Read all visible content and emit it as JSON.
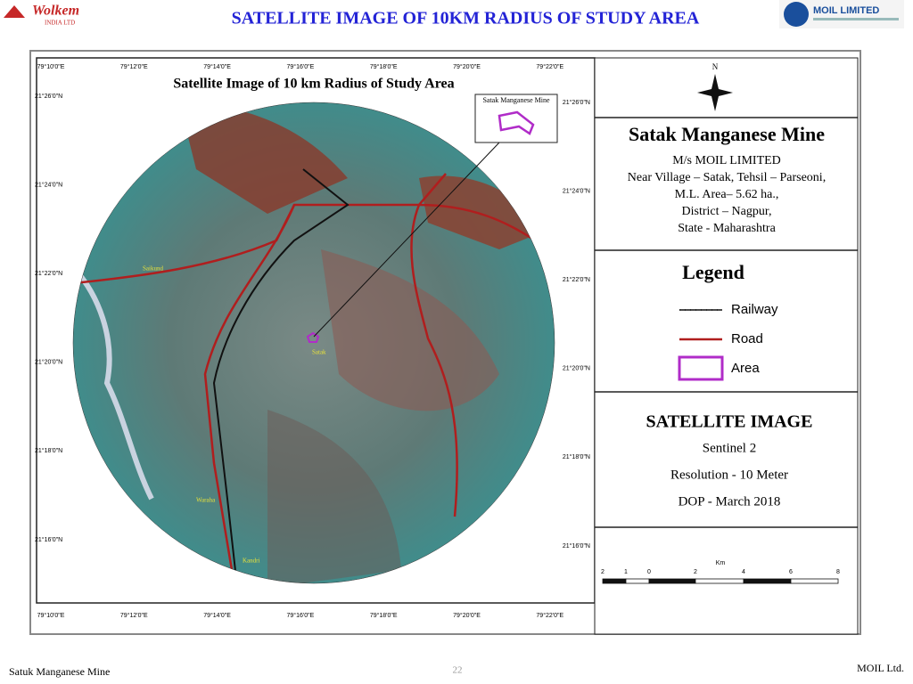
{
  "header": {
    "title": "SATELLITE IMAGE OF 10KM RADIUS OF STUDY AREA",
    "left_logo": {
      "name": "Wolkem",
      "sub": "INDIA LTD"
    },
    "right_logo": {
      "name": "MOIL LIMITED"
    }
  },
  "map": {
    "title": "Satellite Image of 10 km Radius of Study Area",
    "inset_label": "Satak Manganese Mine",
    "longitudes": [
      "79°10'0\"E",
      "79°12'0\"E",
      "79°14'0\"E",
      "79°16'0\"E",
      "79°18'0\"E",
      "79°20'0\"E",
      "79°22'0\"E"
    ],
    "latitudes": [
      "21°26'0\"N",
      "21°24'0\"N",
      "21°22'0\"N",
      "21°20'0\"N",
      "21°18'0\"N",
      "21°16'0\"N"
    ],
    "places": [
      "Saikund",
      "Satak",
      "Waraha",
      "Kandri"
    ]
  },
  "panel": {
    "north": "N",
    "mine_title": "Satak Manganese Mine",
    "mine_lines": [
      "M/s MOIL LIMITED",
      "Near Village – Satak, Tehsil – Parseoni,",
      "M.L. Area– 5.62 ha.,",
      "District – Nagpur,",
      "State - Maharashtra"
    ],
    "legend_title": "Legend",
    "legend": [
      "Railway",
      "Road",
      "Area"
    ],
    "sat_title": "SATELLITE IMAGE",
    "sat_lines": [
      "Sentinel 2",
      "Resolution - 10 Meter",
      "DOP - March 2018"
    ],
    "scale_unit": "Km",
    "scale_ticks": [
      "2",
      "1",
      "0",
      "2",
      "4",
      "6",
      "8"
    ]
  },
  "footer": {
    "left": "Satuk Manganese Mine",
    "page": "22",
    "right": "MOIL Ltd."
  }
}
